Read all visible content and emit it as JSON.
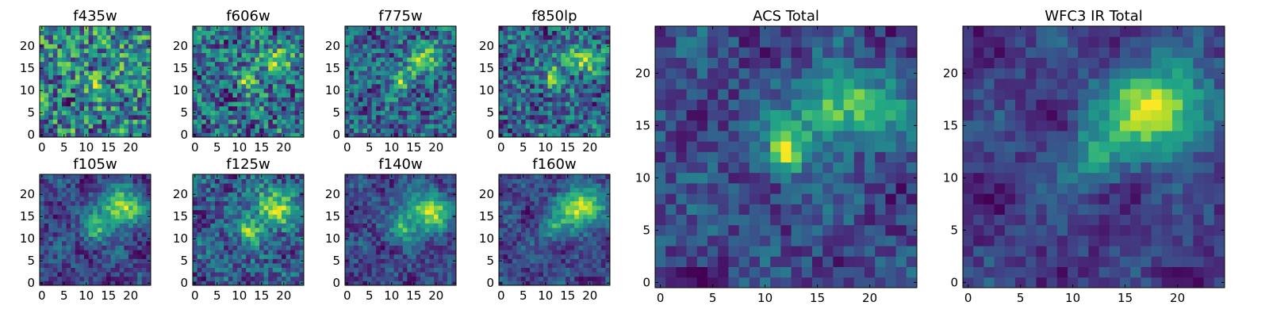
{
  "chart_data": [
    {
      "type": "heatmap",
      "title": "f435w",
      "grid_size": [
        25,
        25
      ],
      "colormap": "viridis",
      "xlim": [
        0,
        24
      ],
      "ylim": [
        0,
        24
      ],
      "xticks": [
        "0",
        "5",
        "10",
        "15",
        "20"
      ],
      "yticks": [
        "0",
        "5",
        "10",
        "15",
        "20"
      ],
      "seed": 11,
      "noise": 0.75,
      "clip": 0.95,
      "blobs": [
        {
          "cx": 12,
          "cy": 12,
          "sx": 1.2,
          "sy": 1.5,
          "amp": 0.35
        },
        {
          "cx": 17,
          "cy": 17,
          "sx": 3,
          "sy": 2,
          "amp": 0.2
        }
      ]
    },
    {
      "type": "heatmap",
      "title": "f606w",
      "grid_size": [
        25,
        25
      ],
      "colormap": "viridis",
      "xlim": [
        0,
        24
      ],
      "ylim": [
        0,
        24
      ],
      "xticks": [
        "0",
        "5",
        "10",
        "15",
        "20"
      ],
      "yticks": [
        "0",
        "5",
        "10",
        "15",
        "20"
      ],
      "seed": 23,
      "noise": 0.6,
      "clip": 1.0,
      "blobs": [
        {
          "cx": 12,
          "cy": 12.5,
          "sx": 1.3,
          "sy": 1.8,
          "amp": 0.45
        },
        {
          "cx": 18,
          "cy": 17,
          "sx": 3,
          "sy": 2,
          "amp": 0.4
        }
      ]
    },
    {
      "type": "heatmap",
      "title": "f775w",
      "grid_size": [
        25,
        25
      ],
      "colormap": "viridis",
      "xlim": [
        0,
        24
      ],
      "ylim": [
        0,
        24
      ],
      "xticks": [
        "0",
        "5",
        "10",
        "15",
        "20"
      ],
      "yticks": [
        "0",
        "5",
        "10",
        "15",
        "20"
      ],
      "seed": 37,
      "noise": 0.6,
      "clip": 1.0,
      "blobs": [
        {
          "cx": 12,
          "cy": 12.5,
          "sx": 1.3,
          "sy": 1.8,
          "amp": 0.5
        },
        {
          "cx": 18,
          "cy": 18,
          "sx": 3,
          "sy": 2,
          "amp": 0.45
        },
        {
          "cx": 15,
          "cy": 15,
          "sx": 1.5,
          "sy": 1.5,
          "amp": 0.2
        }
      ]
    },
    {
      "type": "heatmap",
      "title": "f850lp",
      "grid_size": [
        25,
        25
      ],
      "colormap": "viridis",
      "xlim": [
        0,
        24
      ],
      "ylim": [
        0,
        24
      ],
      "xticks": [
        "0",
        "5",
        "10",
        "15",
        "20"
      ],
      "yticks": [
        "0",
        "5",
        "10",
        "15",
        "20"
      ],
      "seed": 41,
      "noise": 0.6,
      "clip": 1.0,
      "blobs": [
        {
          "cx": 12,
          "cy": 13,
          "sx": 1.4,
          "sy": 1.8,
          "amp": 0.5
        },
        {
          "cx": 18,
          "cy": 17,
          "sx": 3.2,
          "sy": 2,
          "amp": 0.5
        }
      ]
    },
    {
      "type": "heatmap",
      "title": "f105w",
      "grid_size": [
        25,
        25
      ],
      "colormap": "viridis",
      "xlim": [
        0,
        24
      ],
      "ylim": [
        0,
        24
      ],
      "xticks": [
        "0",
        "5",
        "10",
        "15",
        "20"
      ],
      "yticks": [
        "0",
        "5",
        "10",
        "15",
        "20"
      ],
      "seed": 53,
      "noise": 0.35,
      "clip": 1.0,
      "blobs": [
        {
          "cx": 12,
          "cy": 12,
          "sx": 2,
          "sy": 2,
          "amp": 0.45
        },
        {
          "cx": 18,
          "cy": 17,
          "sx": 3.5,
          "sy": 3,
          "amp": 0.7
        }
      ]
    },
    {
      "type": "heatmap",
      "title": "f125w",
      "grid_size": [
        25,
        25
      ],
      "colormap": "viridis",
      "xlim": [
        0,
        24
      ],
      "ylim": [
        0,
        24
      ],
      "xticks": [
        "0",
        "5",
        "10",
        "15",
        "20"
      ],
      "yticks": [
        "0",
        "5",
        "10",
        "15",
        "20"
      ],
      "seed": 67,
      "noise": 0.45,
      "clip": 1.0,
      "blobs": [
        {
          "cx": 12,
          "cy": 12,
          "sx": 2,
          "sy": 2,
          "amp": 0.45
        },
        {
          "cx": 18,
          "cy": 17,
          "sx": 3.5,
          "sy": 3,
          "amp": 0.55
        }
      ]
    },
    {
      "type": "heatmap",
      "title": "f140w",
      "grid_size": [
        25,
        25
      ],
      "colormap": "viridis",
      "xlim": [
        0,
        24
      ],
      "ylim": [
        0,
        24
      ],
      "xticks": [
        "0",
        "5",
        "10",
        "15",
        "20"
      ],
      "yticks": [
        "0",
        "5",
        "10",
        "15",
        "20"
      ],
      "seed": 79,
      "noise": 0.35,
      "clip": 1.0,
      "blobs": [
        {
          "cx": 12,
          "cy": 12,
          "sx": 2,
          "sy": 2,
          "amp": 0.4
        },
        {
          "cx": 18,
          "cy": 16,
          "sx": 3.5,
          "sy": 3,
          "amp": 0.7
        }
      ]
    },
    {
      "type": "heatmap",
      "title": "f160w",
      "grid_size": [
        25,
        25
      ],
      "colormap": "viridis",
      "xlim": [
        0,
        24
      ],
      "ylim": [
        0,
        24
      ],
      "xticks": [
        "0",
        "5",
        "10",
        "15",
        "20"
      ],
      "yticks": [
        "0",
        "5",
        "10",
        "15",
        "20"
      ],
      "seed": 83,
      "noise": 0.3,
      "clip": 1.0,
      "blobs": [
        {
          "cx": 12,
          "cy": 12,
          "sx": 2,
          "sy": 2,
          "amp": 0.35
        },
        {
          "cx": 18,
          "cy": 17,
          "sx": 3.5,
          "sy": 3,
          "amp": 0.75
        }
      ]
    },
    {
      "type": "heatmap",
      "title": "ACS Total",
      "grid_size": [
        25,
        25
      ],
      "colormap": "viridis",
      "xlim": [
        0,
        24
      ],
      "ylim": [
        0,
        24
      ],
      "xticks": [
        "0",
        "5",
        "10",
        "15",
        "20"
      ],
      "yticks": [
        "0",
        "5",
        "10",
        "15",
        "20"
      ],
      "seed": 97,
      "noise": 0.3,
      "clip": 1.0,
      "blobs": [
        {
          "cx": 12,
          "cy": 12.5,
          "sx": 1.3,
          "sy": 1.7,
          "amp": 0.6
        },
        {
          "cx": 18,
          "cy": 17,
          "sx": 3.2,
          "sy": 2.2,
          "amp": 0.5
        },
        {
          "cx": 15,
          "cy": 15,
          "sx": 2,
          "sy": 2,
          "amp": 0.15
        }
      ]
    },
    {
      "type": "heatmap",
      "title": "WFC3 IR Total",
      "grid_size": [
        25,
        25
      ],
      "colormap": "viridis",
      "xlim": [
        0,
        24
      ],
      "ylim": [
        0,
        24
      ],
      "xticks": [
        "0",
        "5",
        "10",
        "15",
        "20"
      ],
      "yticks": [
        "0",
        "5",
        "10",
        "15",
        "20"
      ],
      "seed": 101,
      "noise": 0.22,
      "clip": 1.0,
      "blobs": [
        {
          "cx": 12,
          "cy": 12,
          "sx": 2,
          "sy": 2,
          "amp": 0.35
        },
        {
          "cx": 18,
          "cy": 16.5,
          "sx": 3.5,
          "sy": 3,
          "amp": 0.75
        }
      ]
    }
  ]
}
